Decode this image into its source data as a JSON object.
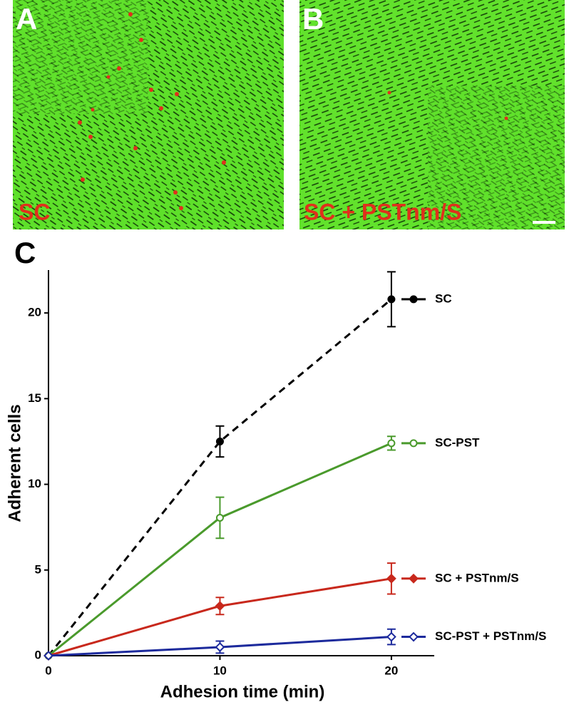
{
  "panels": [
    {
      "letter": "A",
      "caption": "SC"
    },
    {
      "letter": "B",
      "caption": "SC + PSTnm/S"
    }
  ],
  "chart_data": {
    "type": "line",
    "panel": "C",
    "x_label": "Adhesion time (min)",
    "y_label": "Adherent cells",
    "x": [
      0,
      10,
      20
    ],
    "xlim": [
      0,
      22.5
    ],
    "xticks": [
      0,
      10,
      20
    ],
    "ylim": [
      0,
      22.5
    ],
    "yticks": [
      0,
      5,
      10,
      15,
      20
    ],
    "series": [
      {
        "name": "SC",
        "color": "#000000",
        "dashed": true,
        "marker": "circle",
        "filled": true,
        "values": [
          0,
          12.5,
          20.8
        ],
        "errors": [
          0,
          0.9,
          1.6
        ]
      },
      {
        "name": "SC-PST",
        "color": "#4a9a2c",
        "dashed": false,
        "marker": "circle",
        "filled": false,
        "values": [
          0,
          8.05,
          12.4
        ],
        "errors": [
          0,
          1.2,
          0.4
        ]
      },
      {
        "name": "SC + PSTnm/S",
        "color": "#c8281c",
        "dashed": false,
        "marker": "diamond",
        "filled": true,
        "values": [
          0,
          2.9,
          4.5
        ],
        "errors": [
          0,
          0.5,
          0.9
        ]
      },
      {
        "name": "SC-PST + PSTnm/S",
        "color": "#1c2a9c",
        "dashed": false,
        "marker": "diamond",
        "filled": false,
        "values": [
          0,
          0.5,
          1.1
        ],
        "errors": [
          0,
          0.35,
          0.45
        ]
      }
    ]
  }
}
